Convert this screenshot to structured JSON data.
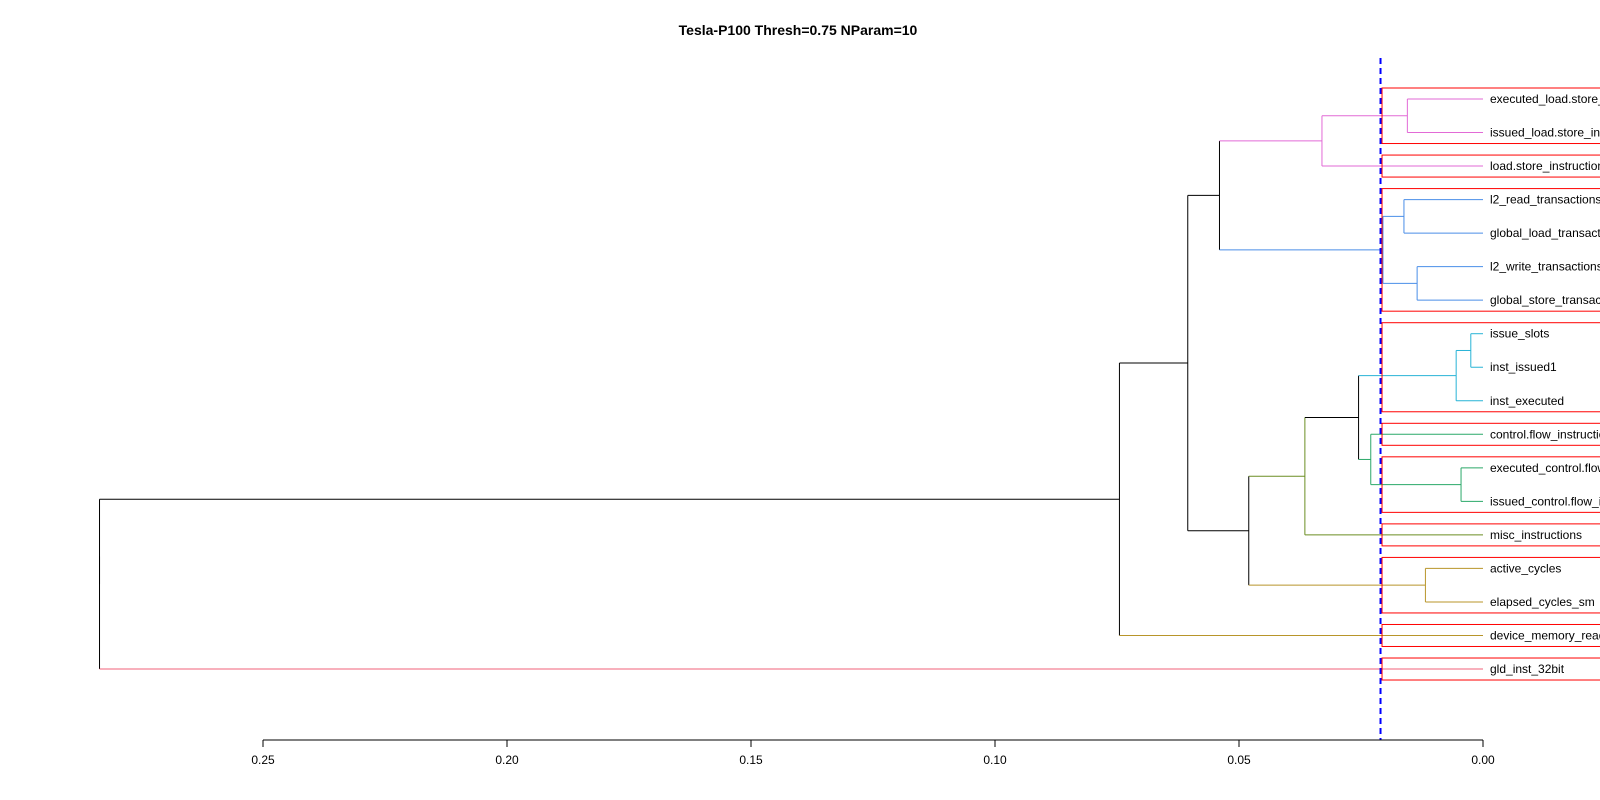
{
  "chart_data": {
    "type": "dendrogram",
    "title": "Tesla-P100 Thresh=0.75 NParam=10",
    "orientation": "horizontal",
    "xlim": [
      0.287,
      0.0
    ],
    "x_axis_reversed": true,
    "x_ticks": [
      0.25,
      0.2,
      0.15,
      0.1,
      0.05,
      0.0
    ],
    "x_tick_labels": [
      "0.25",
      "0.20",
      "0.15",
      "0.10",
      "0.05",
      "0.00"
    ],
    "threshold": {
      "height": 0.021,
      "color": "#0000ff",
      "style": "dashed"
    },
    "leaves": [
      "executed_load.store_instructions",
      "issued_load.store_instructions",
      "load.store_instructions",
      "l2_read_transactions",
      "global_load_transactions",
      "l2_write_transactions",
      "global_store_transactions",
      "issue_slots",
      "inst_issued1",
      "inst_executed",
      "control.flow_instructions",
      "executed_control.flow_instructions",
      "issued_control.flow_instructions",
      "misc_instructions",
      "active_cycles",
      "elapsed_cycles_sm",
      "device_memory_read_transactions",
      "gld_inst_32bit"
    ],
    "leaf_colors": [
      "#e26ad6",
      "#e26ad6",
      "#e26ad6",
      "#4a8ee8",
      "#4a8ee8",
      "#4a8ee8",
      "#4a8ee8",
      "#27b3d6",
      "#27b3d6",
      "#27b3d6",
      "#2aa868",
      "#2aa868",
      "#2aa868",
      "#6b8e23",
      "#b8952a",
      "#b8952a",
      "#b8952a",
      "#f0607a"
    ],
    "merges": [
      {
        "left": "L9",
        "right": "L8",
        "height": 0.0025,
        "color": "#27b3d6"
      },
      {
        "left": "L13",
        "right": "L12",
        "height": 0.0045,
        "color": "#2aa868"
      },
      {
        "left": "M1",
        "right": "L10",
        "height": 0.0055,
        "color": "#27b3d6"
      },
      {
        "left": "L15",
        "right": "L16",
        "height": 0.0118,
        "color": "#b8952a"
      },
      {
        "left": "L6",
        "right": "L7",
        "height": 0.0135,
        "color": "#4a8ee8"
      },
      {
        "left": "L1",
        "right": "L2",
        "height": 0.0155,
        "color": "#e26ad6"
      },
      {
        "left": "L4",
        "right": "L5",
        "height": 0.0162,
        "color": "#4a8ee8"
      },
      {
        "left": "M7",
        "right": "M5",
        "height": 0.0205,
        "color": "#4a8ee8"
      },
      {
        "left": "L11",
        "right": "M2",
        "height": 0.023,
        "color": "#2aa868"
      },
      {
        "left": "M3",
        "right": "M9",
        "height": 0.0255,
        "color": "#000000"
      },
      {
        "left": "M6",
        "right": "L3",
        "height": 0.033,
        "color": "#e26ad6"
      },
      {
        "left": "M10",
        "right": "L14",
        "height": 0.0365,
        "color": "#6b8e23"
      },
      {
        "left": "M12",
        "right": "M4",
        "height": 0.048,
        "color": "#000000"
      },
      {
        "left": "M11",
        "right": "M8",
        "height": 0.054,
        "color": "#000000"
      },
      {
        "left": "M14",
        "right": "M13",
        "height": 0.0605,
        "color": "#000000"
      },
      {
        "left": "M15",
        "right": "L17",
        "height": 0.0745,
        "color": "#000000"
      },
      {
        "left": "M16",
        "right": "L18",
        "height": 0.2835,
        "color": "#000000"
      }
    ],
    "cluster_boxes": {
      "color": "#ff0000",
      "groups": [
        [
          1,
          2
        ],
        [
          3
        ],
        [
          4,
          7
        ],
        [
          8,
          10
        ],
        [
          11
        ],
        [
          12,
          13
        ],
        [
          14
        ],
        [
          15,
          16
        ],
        [
          17
        ],
        [
          18
        ]
      ]
    }
  }
}
